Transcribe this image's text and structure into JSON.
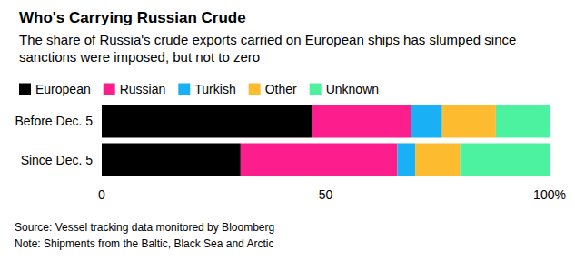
{
  "chart_data": {
    "type": "bar",
    "orientation": "horizontal",
    "stacked": true,
    "title": "Who's Carrying Russian Crude",
    "subtitle": "The share of Russia's crude exports carried on European ships has slumped since sanctions were imposed, but not to zero",
    "source": "Source: Vessel tracking data monitored by Bloomberg",
    "note": "Note: Shipments from the Baltic, Black Sea and Arctic",
    "categories": [
      "Before Dec. 5",
      "Since Dec. 5"
    ],
    "series": [
      {
        "name": "European",
        "color": "#000000",
        "values": [
          47,
          31
        ]
      },
      {
        "name": "Russian",
        "color": "#fd1d8c",
        "values": [
          22,
          35
        ]
      },
      {
        "name": "Turkish",
        "color": "#1ab0f5",
        "values": [
          7,
          4
        ]
      },
      {
        "name": "Other",
        "color": "#fdbb30",
        "values": [
          12,
          10
        ]
      },
      {
        "name": "Unknown",
        "color": "#4cf2a0",
        "values": [
          12,
          20
        ]
      }
    ],
    "xlim": [
      0,
      100
    ],
    "xticks": [
      0,
      50,
      {
        "value": 100,
        "label": "100%"
      }
    ],
    "grid": false,
    "legend": "top-left",
    "data_labels": false
  }
}
